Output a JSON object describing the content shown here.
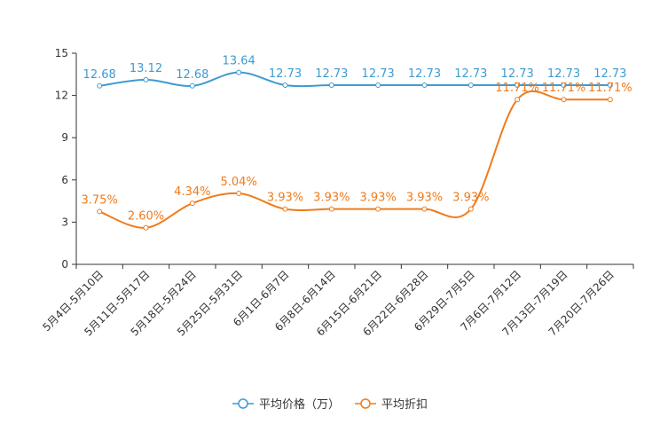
{
  "chart_data": {
    "type": "line",
    "title": "",
    "xlabel": "",
    "ylabel": "",
    "ylim": [
      0,
      15
    ],
    "yticks": [
      0,
      3,
      6,
      9,
      12,
      15
    ],
    "grid": false,
    "legend_position": "bottom",
    "categories": [
      "5月4日-5月10日",
      "5月11日-5月17日",
      "5月18日-5月24日",
      "5月25日-5月31日",
      "6月1日-6月7日",
      "6月8日-6月14日",
      "6月15日-6月21日",
      "6月22日-6月28日",
      "6月29日-7月5日",
      "7月6日-7月12日",
      "7月13日-7月19日",
      "7月20日-7月26日"
    ],
    "series": [
      {
        "name": "平均价格（万）",
        "color": "#3d9bd1",
        "values": [
          12.68,
          13.12,
          12.68,
          13.64,
          12.73,
          12.73,
          12.73,
          12.73,
          12.73,
          12.73,
          12.73,
          12.73
        ],
        "labels": [
          "12.68",
          "13.12",
          "12.68",
          "13.64",
          "12.73",
          "12.73",
          "12.73",
          "12.73",
          "12.73",
          "12.73",
          "12.73",
          "12.73"
        ]
      },
      {
        "name": "平均折扣",
        "color": "#f07b1a",
        "values": [
          3.75,
          2.6,
          4.34,
          5.04,
          3.93,
          3.93,
          3.93,
          3.93,
          3.93,
          11.71,
          11.71,
          11.71
        ],
        "labels": [
          "3.75%",
          "2.60%",
          "4.34%",
          "5.04%",
          "3.93%",
          "3.93%",
          "3.93%",
          "3.93%",
          "3.93%",
          "11.71%",
          "11.71%",
          "11.71%"
        ]
      }
    ]
  }
}
